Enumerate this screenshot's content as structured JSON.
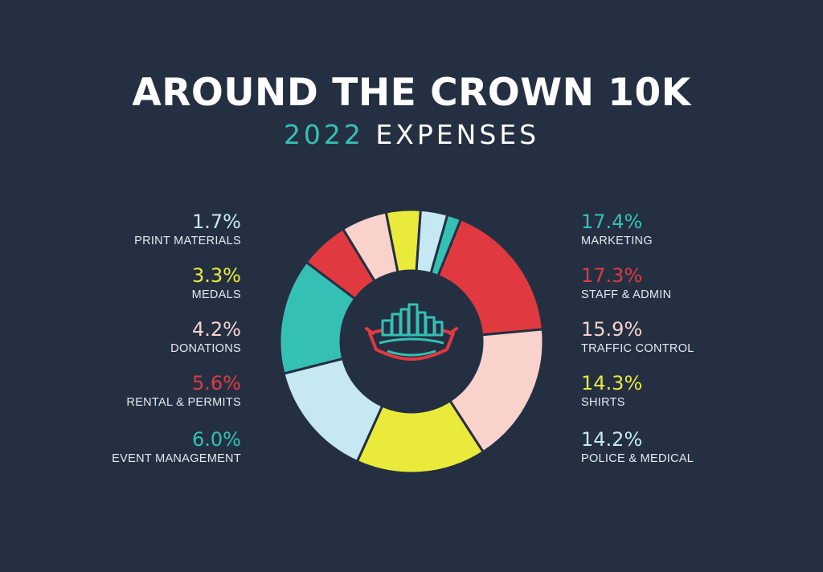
{
  "title": "AROUND THE CROWN 10K",
  "subtitle": {
    "year": "2022",
    "text": "EXPENSES"
  },
  "colors": {
    "background": "#243042",
    "teal": "#35c0b5",
    "red": "#e03a40",
    "pink": "#f9d2cc",
    "yellow": "#eaea3a",
    "lightblue": "#c6e8f2"
  },
  "logo_icon": "crown-skyline-logo-icon",
  "chart_data": {
    "type": "pie",
    "donut": true,
    "title": "AROUND THE CROWN 10K",
    "subtitle": "2022 EXPENSES",
    "legend_placement": "split left and right",
    "slices": [
      {
        "label": "MARKETING",
        "value": 17.4,
        "display": "17.4%",
        "color": "#e03a40"
      },
      {
        "label": "STAFF & ADMIN",
        "value": 17.3,
        "display": "17.3%",
        "color": "#f9d2cc"
      },
      {
        "label": "TRAFFIC CONTROL",
        "value": 15.9,
        "display": "15.9%",
        "color": "#eaea3a"
      },
      {
        "label": "SHIRTS",
        "value": 14.3,
        "display": "14.3%",
        "color": "#c6e8f2"
      },
      {
        "label": "POLICE & MEDICAL",
        "value": 14.2,
        "display": "14.2%",
        "color": "#35c0b5"
      },
      {
        "label": "EVENT MANAGEMENT",
        "value": 6.0,
        "display": "6.0%",
        "color": "#e03a40"
      },
      {
        "label": "RENTAL & PERMITS",
        "value": 5.6,
        "display": "5.6%",
        "color": "#f9d2cc"
      },
      {
        "label": "DONATIONS",
        "value": 4.2,
        "display": "4.2%",
        "color": "#eaea3a"
      },
      {
        "label": "MEDALS",
        "value": 3.3,
        "display": "3.3%",
        "color": "#c6e8f2"
      },
      {
        "label": "PRINT MATERIALS",
        "value": 1.7,
        "display": "1.7%",
        "color": "#35c0b5"
      }
    ]
  },
  "legend": {
    "left": [
      {
        "pct": "1.7%",
        "label": "PRINT MATERIALS",
        "color": "#c6e8f2"
      },
      {
        "pct": "3.3%",
        "label": "MEDALS",
        "color": "#eaea3a"
      },
      {
        "pct": "4.2%",
        "label": "DONATIONS",
        "color": "#f9d2cc"
      },
      {
        "pct": "5.6%",
        "label": "RENTAL & PERMITS",
        "color": "#e03a40"
      },
      {
        "pct": "6.0%",
        "label": "EVENT MANAGEMENT",
        "color": "#35c0b5"
      }
    ],
    "right": [
      {
        "pct": "17.4%",
        "label": "MARKETING",
        "color": "#35c0b5"
      },
      {
        "pct": "17.3%",
        "label": "STAFF & ADMIN",
        "color": "#e03a40"
      },
      {
        "pct": "15.9%",
        "label": "TRAFFIC CONTROL",
        "color": "#f9d2cc"
      },
      {
        "pct": "14.3%",
        "label": "SHIRTS",
        "color": "#eaea3a"
      },
      {
        "pct": "14.2%",
        "label": "POLICE & MEDICAL",
        "color": "#c6e8f2"
      }
    ]
  }
}
